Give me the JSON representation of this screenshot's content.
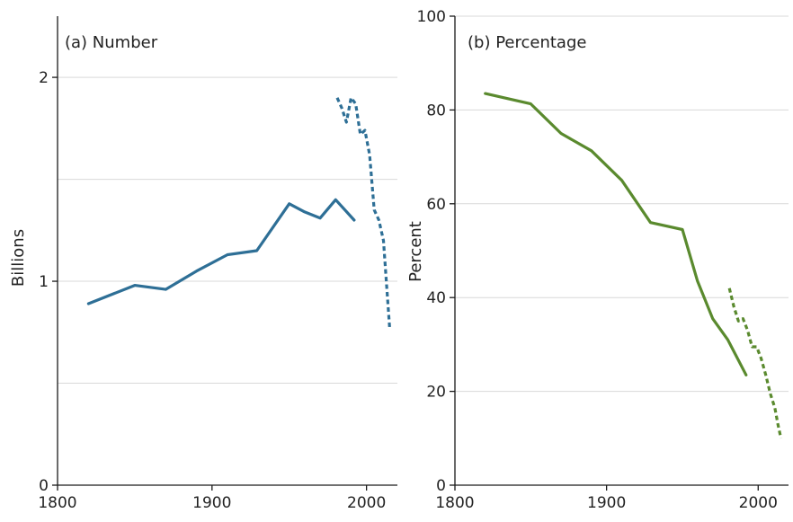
{
  "chart_data": [
    {
      "type": "line",
      "title": "(a) Number",
      "ylabel": "Billions",
      "xlabel": "",
      "xlim": [
        1800,
        2020
      ],
      "ylim": [
        0,
        2.3
      ],
      "xticks": [
        1800,
        1900,
        2000
      ],
      "yticks": [
        0,
        1,
        2
      ],
      "yticks_minor": [
        0.5,
        1.5
      ],
      "grid": true,
      "color": "#2e6f96",
      "series": [
        {
          "style": "solid",
          "x": [
            1820,
            1850,
            1870,
            1890,
            1910,
            1929,
            1950,
            1960,
            1970,
            1980,
            1992
          ],
          "y": [
            0.89,
            0.98,
            0.96,
            1.05,
            1.13,
            1.15,
            1.38,
            1.34,
            1.31,
            1.4,
            1.3
          ]
        },
        {
          "style": "dashed",
          "x": [
            1981,
            1984,
            1987,
            1990,
            1993,
            1996,
            1999,
            2002,
            2005,
            2008,
            2011,
            2013,
            2015
          ],
          "y": [
            1.9,
            1.85,
            1.78,
            1.9,
            1.87,
            1.72,
            1.74,
            1.62,
            1.35,
            1.3,
            1.2,
            0.98,
            0.77
          ]
        }
      ]
    },
    {
      "type": "line",
      "title": "(b) Percentage",
      "ylabel": "Percent",
      "xlabel": "",
      "xlim": [
        1800,
        2020
      ],
      "ylim": [
        0,
        100
      ],
      "xticks": [
        1800,
        1900,
        2000
      ],
      "yticks": [
        0,
        20,
        40,
        60,
        80,
        100
      ],
      "grid": true,
      "color": "#5a8a2e",
      "series": [
        {
          "style": "solid",
          "x": [
            1820,
            1850,
            1870,
            1890,
            1910,
            1929,
            1950,
            1960,
            1970,
            1980,
            1992
          ],
          "y": [
            83.5,
            81.3,
            75.0,
            71.3,
            65.0,
            56.0,
            54.5,
            43.5,
            35.5,
            31.0,
            23.5
          ]
        },
        {
          "style": "dashed",
          "x": [
            1981,
            1984,
            1987,
            1990,
            1993,
            1996,
            1999,
            2002,
            2005,
            2008,
            2011,
            2013,
            2015
          ],
          "y": [
            42.0,
            38.0,
            35.0,
            35.5,
            33.0,
            29.5,
            29.5,
            27.0,
            23.5,
            19.5,
            16.5,
            13.0,
            10.0
          ]
        }
      ]
    }
  ]
}
